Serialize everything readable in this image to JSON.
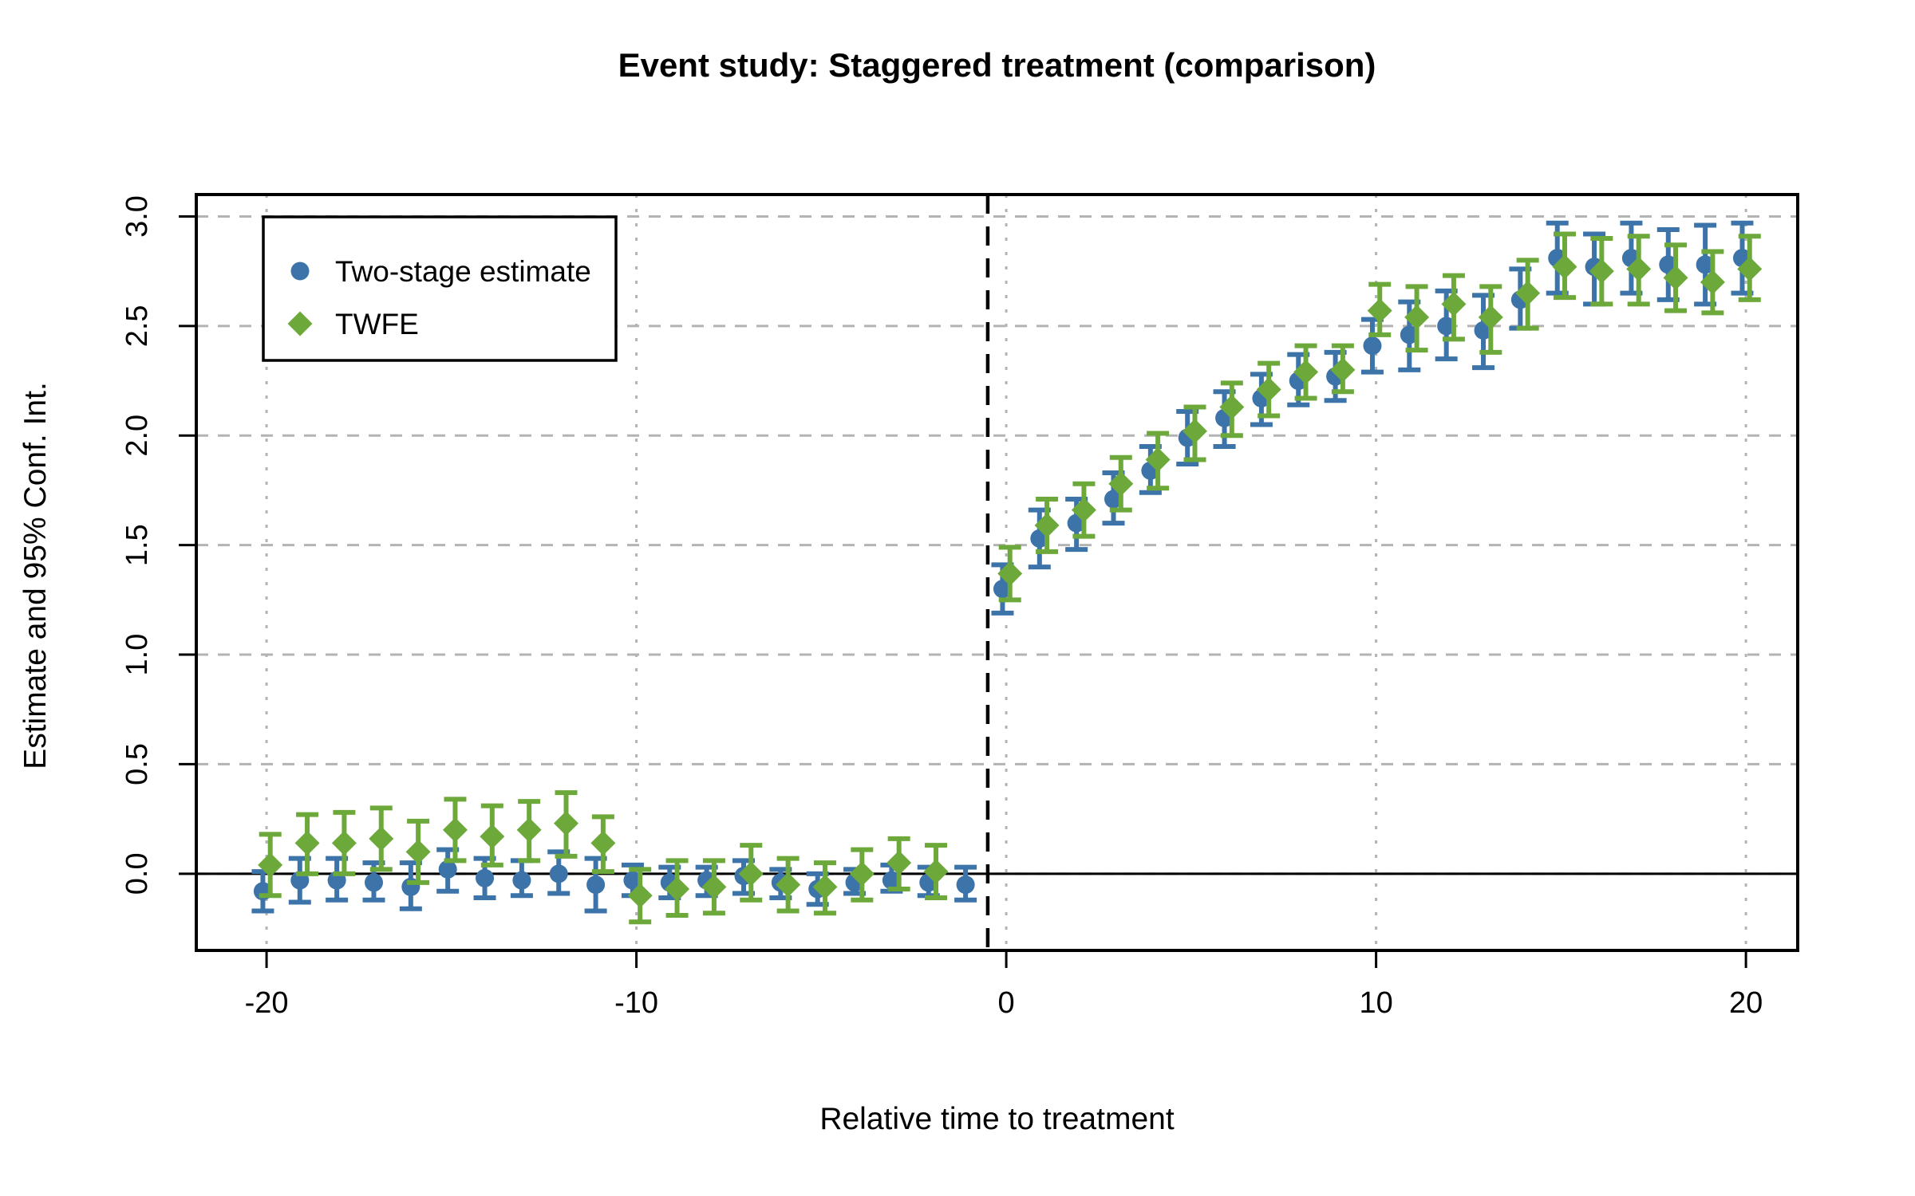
{
  "title": "Event study: Staggered treatment (comparison)",
  "axes": {
    "x_label": "Relative time to treatment",
    "y_label": "Estimate and 95% Conf. Int.",
    "x_tick_labels": [
      "-20",
      "-10",
      "0",
      "10",
      "20"
    ],
    "y_tick_labels": [
      "0.0",
      "0.5",
      "1.0",
      "1.5",
      "2.0",
      "2.5",
      "3.0"
    ]
  },
  "legend": {
    "items": [
      {
        "label": "Two-stage estimate",
        "marker": "circle-icon",
        "color": "#3C73A8"
      },
      {
        "label": "TWFE",
        "marker": "diamond-icon",
        "color": "#6CA93A"
      }
    ]
  },
  "colors": {
    "background": "#FFFFFF",
    "two_stage": "#3C73A8",
    "twfe": "#6CA93A",
    "gridline": "#B3B3B3",
    "axis": "#000000"
  },
  "chart_data": {
    "type": "scatter",
    "title": "Event study: Staggered treatment (comparison)",
    "xlabel": "Relative time to treatment",
    "ylabel": "Estimate and 95% Conf. Int.",
    "xlim": [
      -21.9,
      21.4
    ],
    "ylim": [
      -0.35,
      3.1
    ],
    "x_ticks": [
      -20,
      -10,
      0,
      10,
      20
    ],
    "y_ticks": [
      0.0,
      0.5,
      1.0,
      1.5,
      2.0,
      2.5,
      3.0
    ],
    "grid": true,
    "legend_position": "top-left",
    "reference_lines": {
      "treatment_line_x": -0.5,
      "zero_line_y": 0
    },
    "series": [
      {
        "name": "Two-stage estimate",
        "slug": "two-stage",
        "marker": "circle",
        "color": "#3C73A8",
        "dodge": -0.1,
        "points": [
          {
            "t": -20,
            "est": -0.08,
            "lo": -0.17,
            "hi": 0.01
          },
          {
            "t": -19,
            "est": -0.03,
            "lo": -0.13,
            "hi": 0.07
          },
          {
            "t": -18,
            "est": -0.03,
            "lo": -0.12,
            "hi": 0.07
          },
          {
            "t": -17,
            "est": -0.04,
            "lo": -0.12,
            "hi": 0.05
          },
          {
            "t": -16,
            "est": -0.06,
            "lo": -0.16,
            "hi": 0.05
          },
          {
            "t": -15,
            "est": 0.02,
            "lo": -0.08,
            "hi": 0.11
          },
          {
            "t": -14,
            "est": -0.02,
            "lo": -0.11,
            "hi": 0.07
          },
          {
            "t": -13,
            "est": -0.03,
            "lo": -0.1,
            "hi": 0.06
          },
          {
            "t": -12,
            "est": 0.0,
            "lo": -0.09,
            "hi": 0.1
          },
          {
            "t": -11,
            "est": -0.05,
            "lo": -0.17,
            "hi": 0.07
          },
          {
            "t": -10,
            "est": -0.03,
            "lo": -0.1,
            "hi": 0.04
          },
          {
            "t": -9,
            "est": -0.04,
            "lo": -0.11,
            "hi": 0.03
          },
          {
            "t": -8,
            "est": -0.03,
            "lo": -0.1,
            "hi": 0.03
          },
          {
            "t": -7,
            "est": -0.01,
            "lo": -0.09,
            "hi": 0.06
          },
          {
            "t": -6,
            "est": -0.04,
            "lo": -0.11,
            "hi": 0.02
          },
          {
            "t": -5,
            "est": -0.07,
            "lo": -0.14,
            "hi": 0.0
          },
          {
            "t": -4,
            "est": -0.04,
            "lo": -0.09,
            "hi": 0.02
          },
          {
            "t": -3,
            "est": -0.03,
            "lo": -0.08,
            "hi": 0.04
          },
          {
            "t": -2,
            "est": -0.04,
            "lo": -0.1,
            "hi": 0.03
          },
          {
            "t": -1,
            "est": -0.05,
            "lo": -0.12,
            "hi": 0.03
          },
          {
            "t": 0,
            "est": 1.3,
            "lo": 1.19,
            "hi": 1.41
          },
          {
            "t": 1,
            "est": 1.53,
            "lo": 1.4,
            "hi": 1.66
          },
          {
            "t": 2,
            "est": 1.6,
            "lo": 1.48,
            "hi": 1.71
          },
          {
            "t": 3,
            "est": 1.71,
            "lo": 1.6,
            "hi": 1.83
          },
          {
            "t": 4,
            "est": 1.84,
            "lo": 1.74,
            "hi": 1.95
          },
          {
            "t": 5,
            "est": 1.99,
            "lo": 1.87,
            "hi": 2.11
          },
          {
            "t": 6,
            "est": 2.08,
            "lo": 1.95,
            "hi": 2.2
          },
          {
            "t": 7,
            "est": 2.17,
            "lo": 2.05,
            "hi": 2.28
          },
          {
            "t": 8,
            "est": 2.25,
            "lo": 2.14,
            "hi": 2.37
          },
          {
            "t": 9,
            "est": 2.27,
            "lo": 2.16,
            "hi": 2.38
          },
          {
            "t": 10,
            "est": 2.41,
            "lo": 2.29,
            "hi": 2.53
          },
          {
            "t": 11,
            "est": 2.46,
            "lo": 2.3,
            "hi": 2.61
          },
          {
            "t": 12,
            "est": 2.5,
            "lo": 2.35,
            "hi": 2.66
          },
          {
            "t": 13,
            "est": 2.48,
            "lo": 2.31,
            "hi": 2.64
          },
          {
            "t": 14,
            "est": 2.62,
            "lo": 2.49,
            "hi": 2.76
          },
          {
            "t": 15,
            "est": 2.81,
            "lo": 2.65,
            "hi": 2.97
          },
          {
            "t": 16,
            "est": 2.77,
            "lo": 2.6,
            "hi": 2.92
          },
          {
            "t": 17,
            "est": 2.81,
            "lo": 2.65,
            "hi": 2.97
          },
          {
            "t": 18,
            "est": 2.78,
            "lo": 2.62,
            "hi": 2.94
          },
          {
            "t": 19,
            "est": 2.78,
            "lo": 2.6,
            "hi": 2.96
          },
          {
            "t": 20,
            "est": 2.81,
            "lo": 2.65,
            "hi": 2.97
          }
        ]
      },
      {
        "name": "TWFE",
        "slug": "twfe",
        "marker": "diamond",
        "color": "#6CA93A",
        "dodge": 0.1,
        "points": [
          {
            "t": -20,
            "est": 0.04,
            "lo": -0.1,
            "hi": 0.18
          },
          {
            "t": -19,
            "est": 0.14,
            "lo": 0.0,
            "hi": 0.27
          },
          {
            "t": -18,
            "est": 0.14,
            "lo": 0.0,
            "hi": 0.28
          },
          {
            "t": -17,
            "est": 0.16,
            "lo": 0.02,
            "hi": 0.3
          },
          {
            "t": -16,
            "est": 0.1,
            "lo": -0.04,
            "hi": 0.24
          },
          {
            "t": -15,
            "est": 0.2,
            "lo": 0.06,
            "hi": 0.34
          },
          {
            "t": -14,
            "est": 0.17,
            "lo": 0.04,
            "hi": 0.31
          },
          {
            "t": -13,
            "est": 0.2,
            "lo": 0.06,
            "hi": 0.33
          },
          {
            "t": -12,
            "est": 0.23,
            "lo": 0.08,
            "hi": 0.37
          },
          {
            "t": -11,
            "est": 0.14,
            "lo": 0.01,
            "hi": 0.26
          },
          {
            "t": -10,
            "est": -0.1,
            "lo": -0.22,
            "hi": 0.02
          },
          {
            "t": -9,
            "est": -0.07,
            "lo": -0.19,
            "hi": 0.06
          },
          {
            "t": -8,
            "est": -0.06,
            "lo": -0.18,
            "hi": 0.06
          },
          {
            "t": -7,
            "est": 0.0,
            "lo": -0.12,
            "hi": 0.13
          },
          {
            "t": -6,
            "est": -0.05,
            "lo": -0.17,
            "hi": 0.07
          },
          {
            "t": -5,
            "est": -0.06,
            "lo": -0.18,
            "hi": 0.05
          },
          {
            "t": -4,
            "est": 0.0,
            "lo": -0.12,
            "hi": 0.11
          },
          {
            "t": -3,
            "est": 0.05,
            "lo": -0.07,
            "hi": 0.16
          },
          {
            "t": -2,
            "est": 0.01,
            "lo": -0.11,
            "hi": 0.13
          },
          {
            "t": 0,
            "est": 1.37,
            "lo": 1.25,
            "hi": 1.49
          },
          {
            "t": 1,
            "est": 1.59,
            "lo": 1.47,
            "hi": 1.71
          },
          {
            "t": 2,
            "est": 1.66,
            "lo": 1.54,
            "hi": 1.78
          },
          {
            "t": 3,
            "est": 1.78,
            "lo": 1.66,
            "hi": 1.9
          },
          {
            "t": 4,
            "est": 1.89,
            "lo": 1.76,
            "hi": 2.01
          },
          {
            "t": 5,
            "est": 2.02,
            "lo": 1.89,
            "hi": 2.13
          },
          {
            "t": 6,
            "est": 2.13,
            "lo": 2.0,
            "hi": 2.24
          },
          {
            "t": 7,
            "est": 2.21,
            "lo": 2.09,
            "hi": 2.33
          },
          {
            "t": 8,
            "est": 2.29,
            "lo": 2.17,
            "hi": 2.41
          },
          {
            "t": 9,
            "est": 2.3,
            "lo": 2.2,
            "hi": 2.41
          },
          {
            "t": 10,
            "est": 2.57,
            "lo": 2.46,
            "hi": 2.69
          },
          {
            "t": 11,
            "est": 2.54,
            "lo": 2.39,
            "hi": 2.68
          },
          {
            "t": 12,
            "est": 2.6,
            "lo": 2.44,
            "hi": 2.73
          },
          {
            "t": 13,
            "est": 2.54,
            "lo": 2.38,
            "hi": 2.68
          },
          {
            "t": 14,
            "est": 2.65,
            "lo": 2.49,
            "hi": 2.8
          },
          {
            "t": 15,
            "est": 2.77,
            "lo": 2.63,
            "hi": 2.92
          },
          {
            "t": 16,
            "est": 2.75,
            "lo": 2.6,
            "hi": 2.9
          },
          {
            "t": 17,
            "est": 2.76,
            "lo": 2.6,
            "hi": 2.91
          },
          {
            "t": 18,
            "est": 2.72,
            "lo": 2.57,
            "hi": 2.87
          },
          {
            "t": 19,
            "est": 2.7,
            "lo": 2.56,
            "hi": 2.84
          },
          {
            "t": 20,
            "est": 2.76,
            "lo": 2.62,
            "hi": 2.91
          }
        ]
      }
    ]
  }
}
